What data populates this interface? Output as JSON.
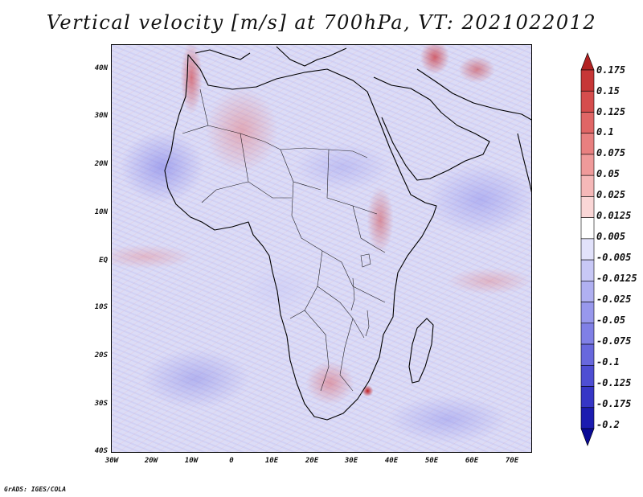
{
  "title": "Vertical velocity [m/s] at 700hPa, VT: 2021022012",
  "map": {
    "variable": "Vertical velocity",
    "units": "m/s",
    "level": "700hPa",
    "valid_time": "2021022012",
    "lat_labels": [
      "40N",
      "30N",
      "20N",
      "10N",
      "EQ",
      "10S",
      "20S",
      "30S",
      "40S"
    ],
    "lon_labels": [
      "30W",
      "20W",
      "10W",
      "0",
      "10E",
      "20E",
      "30E",
      "40E",
      "50E",
      "60E",
      "70E"
    ]
  },
  "colorbar": {
    "labels": [
      "0.175",
      "0.15",
      "0.125",
      "0.1",
      "0.075",
      "0.05",
      "0.025",
      "0.0125",
      "0.005",
      "-0.005",
      "-0.0125",
      "-0.025",
      "-0.05",
      "-0.075",
      "-0.1",
      "-0.125",
      "-0.175",
      "-0.2"
    ],
    "colors": [
      "#b22222",
      "#c63737",
      "#d54d4d",
      "#e06666",
      "#e88080",
      "#ef9a9a",
      "#f5b8b8",
      "#fad6d6",
      "#ffffff",
      "#e2e2fb",
      "#c8c8f6",
      "#b0b0f1",
      "#9898ec",
      "#8080e6",
      "#6868dd",
      "#4e4ed3",
      "#3636c6",
      "#1c1cb0",
      "#0a0a96"
    ]
  },
  "credit": "GrADS: IGES/COLA"
}
